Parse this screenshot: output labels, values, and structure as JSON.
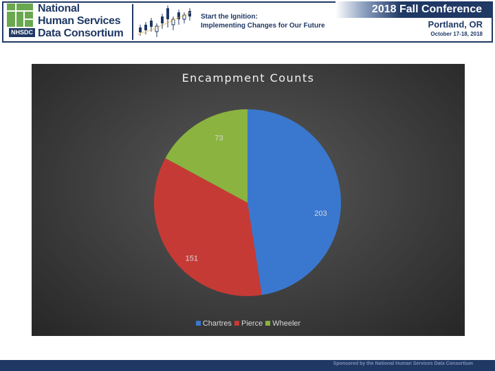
{
  "header": {
    "org_badge": "NHSDC",
    "org_name_lines": [
      "National",
      "Human Services",
      "Data Consortium"
    ],
    "tagline_lines": [
      "Start the Ignition:",
      "Implementing Changes for Our Future"
    ],
    "conference_title": "2018 Fall Conference",
    "conference_city": "Portland, OR",
    "conference_dates": "October 17-18, 2018"
  },
  "footer": {
    "sponsor_text": "Sponsored by the National Human Services Data Consortium"
  },
  "colors": {
    "navy": "#1f3864",
    "logo_green": "#6aa84f"
  },
  "chart_data": {
    "type": "pie",
    "title": "Encampment Counts",
    "categories": [
      "Chartres",
      "Pierce",
      "Wheeler"
    ],
    "values": [
      203,
      151,
      73
    ],
    "colors": [
      "#3a78cf",
      "#c63a36",
      "#8ab33f"
    ],
    "data_labels": [
      "203",
      "151",
      "73"
    ],
    "legend_position": "bottom",
    "start_angle_deg": 0,
    "direction": "clockwise"
  }
}
